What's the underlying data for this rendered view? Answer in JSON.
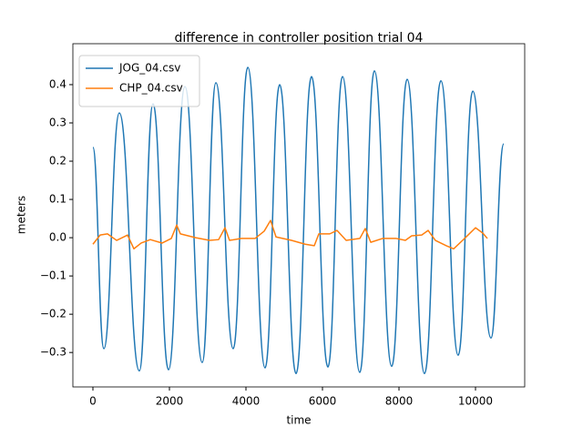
{
  "chart_data": {
    "type": "line",
    "title": "difference in controller position trial 04",
    "x_label": "time",
    "y_label": "meters",
    "legend": "upper left",
    "grid": false,
    "xlim": [
      -524,
      11286
    ],
    "ylim": [
      -0.39,
      0.507
    ],
    "xticks": [
      0,
      2000,
      4000,
      6000,
      8000,
      10000
    ],
    "yticks": [
      {
        "value": -0.3,
        "label": "−0.3"
      },
      {
        "value": -0.2,
        "label": "−0.2"
      },
      {
        "value": -0.1,
        "label": "−0.1"
      },
      {
        "value": 0,
        "label": "0.0"
      },
      0.1,
      0.2,
      0.3,
      0.4
    ],
    "series": [
      {
        "name": "JOG_04.csv",
        "color": "#1f77b4",
        "smooth": true,
        "x": [
          0,
          286,
          690,
          1214,
          1571,
          1976,
          2405,
          2857,
          3214,
          3667,
          4048,
          4500,
          4881,
          5310,
          5714,
          6143,
          6524,
          6976,
          7357,
          7810,
          8214,
          8667,
          9095,
          9548,
          9929,
          10405,
          10738
        ],
        "values": [
          0.236,
          -0.29,
          0.326,
          -0.348,
          0.35,
          -0.345,
          0.395,
          -0.326,
          0.405,
          -0.29,
          0.445,
          -0.34,
          0.4,
          -0.355,
          0.421,
          -0.338,
          0.421,
          -0.352,
          0.436,
          -0.336,
          0.414,
          -0.355,
          0.41,
          -0.307,
          0.383,
          -0.262,
          0.245
        ]
      },
      {
        "name": "CHP_04.csv",
        "color": "#ff7f0e",
        "smooth": false,
        "x": [
          0,
          190,
          380,
          620,
          905,
          1071,
          1262,
          1500,
          1810,
          2048,
          2190,
          2286,
          2690,
          3048,
          3286,
          3452,
          3571,
          3881,
          4238,
          4476,
          4643,
          4786,
          5190,
          5548,
          5786,
          5905,
          6190,
          6381,
          6619,
          6976,
          7119,
          7262,
          7571,
          7929,
          8167,
          8333,
          8595,
          8762,
          8952,
          9238,
          9429,
          9714,
          10000,
          10190,
          10310
        ],
        "values": [
          -0.017,
          0.007,
          0.01,
          -0.007,
          0.007,
          -0.029,
          -0.014,
          -0.005,
          -0.014,
          -0.002,
          0.033,
          0.01,
          0,
          -0.007,
          -0.005,
          0.026,
          -0.007,
          -0.002,
          -0.002,
          0.017,
          0.045,
          0.002,
          -0.007,
          -0.017,
          -0.021,
          0.01,
          0.01,
          0.019,
          -0.007,
          -0.002,
          0.024,
          -0.012,
          -0.002,
          -0.002,
          -0.007,
          0.005,
          0.007,
          0.019,
          -0.007,
          -0.021,
          -0.029,
          -0.002,
          0.026,
          0.012,
          -0.002
        ]
      }
    ]
  }
}
